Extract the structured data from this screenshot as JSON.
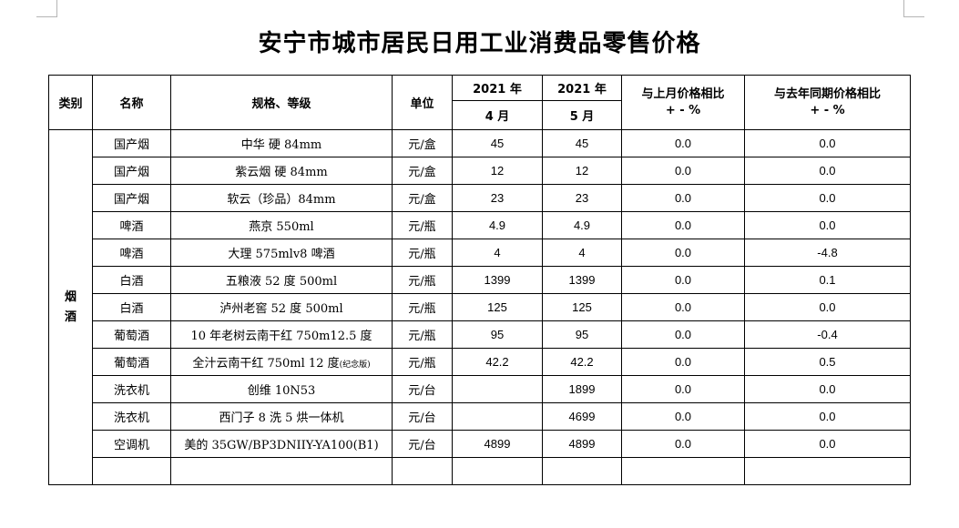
{
  "title": "安宁市城市居民日用工业消费品零售价格",
  "table": {
    "headers": {
      "category": "类别",
      "name": "名称",
      "spec": "规格、等级",
      "unit": "单位",
      "prev_year": "2021 年",
      "prev_month": "4 月",
      "cur_year": "2021 年",
      "cur_month": "5 月",
      "mom_title": "与上月价格相比",
      "mom_unit": "+ - %",
      "yoy_title": "与去年同期价格相比",
      "yoy_unit": "+ - %"
    },
    "category": "烟酒",
    "category_chars": [
      "烟",
      "酒"
    ],
    "rows": [
      {
        "name": "国产烟",
        "spec": "中华 硬 84mm",
        "spec_note": "",
        "unit": "元/盒",
        "apr": "45",
        "may": "45",
        "mom": "0.0",
        "yoy": "0.0"
      },
      {
        "name": "国产烟",
        "spec": "紫云烟 硬 84mm",
        "spec_note": "",
        "unit": "元/盒",
        "apr": "12",
        "may": "12",
        "mom": "0.0",
        "yoy": "0.0"
      },
      {
        "name": "国产烟",
        "spec": "软云（珍品）84mm",
        "spec_note": "",
        "unit": "元/盒",
        "apr": "23",
        "may": "23",
        "mom": "0.0",
        "yoy": "0.0"
      },
      {
        "name": "啤酒",
        "spec": "燕京 550ml",
        "spec_note": "",
        "unit": "元/瓶",
        "apr": "4.9",
        "may": "4.9",
        "mom": "0.0",
        "yoy": "0.0"
      },
      {
        "name": "啤酒",
        "spec": "大理 575mlv8 啤酒",
        "spec_note": "",
        "unit": "元/瓶",
        "apr": "4",
        "may": "4",
        "mom": "0.0",
        "yoy": "-4.8"
      },
      {
        "name": "白酒",
        "spec": "五粮液 52 度 500ml",
        "spec_note": "",
        "unit": "元/瓶",
        "apr": "1399",
        "may": "1399",
        "mom": "0.0",
        "yoy": "0.1"
      },
      {
        "name": "白酒",
        "spec": "泸州老窖 52 度 500ml",
        "spec_note": "",
        "unit": "元/瓶",
        "apr": "125",
        "may": "125",
        "mom": "0.0",
        "yoy": "0.0"
      },
      {
        "name": "葡萄酒",
        "spec": "10 年老树云南干红 750m12.5 度",
        "spec_note": "",
        "unit": "元/瓶",
        "apr": "95",
        "may": "95",
        "mom": "0.0",
        "yoy": "-0.4"
      },
      {
        "name": "葡萄酒",
        "spec": "全汁云南干红 750ml 12 度",
        "spec_note": "(纪念版)",
        "unit": "元/瓶",
        "apr": "42.2",
        "may": "42.2",
        "mom": "0.0",
        "yoy": "0.5"
      },
      {
        "name": "洗衣机",
        "spec": "创维 10N53",
        "spec_note": "",
        "unit": "元/台",
        "apr": "",
        "may": "1899",
        "mom": "0.0",
        "yoy": "0.0"
      },
      {
        "name": "洗衣机",
        "spec": "西门子 8 洗 5 烘一体机",
        "spec_note": "",
        "unit": "元/台",
        "apr": "",
        "may": "4699",
        "mom": "0.0",
        "yoy": "0.0"
      },
      {
        "name": "空调机",
        "spec": "美的 35GW/BP3DNIIY-YA100(B1)",
        "spec_note": "",
        "unit": "元/台",
        "apr": "4899",
        "may": "4899",
        "mom": "0.0",
        "yoy": "0.0"
      }
    ]
  }
}
